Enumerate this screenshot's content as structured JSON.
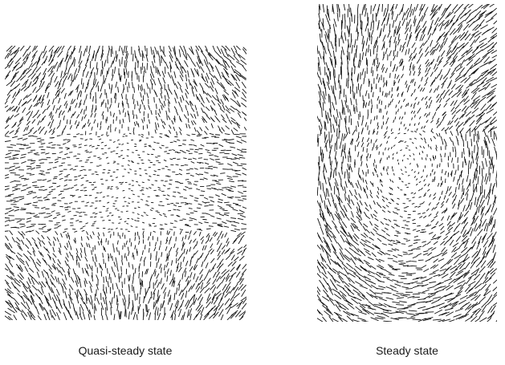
{
  "figure": {
    "panels": [
      {
        "id": "quasi-steady",
        "caption": "Quasi-steady state",
        "field_pattern": "hourglass",
        "stroke_color": "#111111"
      },
      {
        "id": "steady",
        "caption": "Steady state",
        "field_pattern": "vortex-pair",
        "stroke_color": "#111111"
      }
    ]
  }
}
